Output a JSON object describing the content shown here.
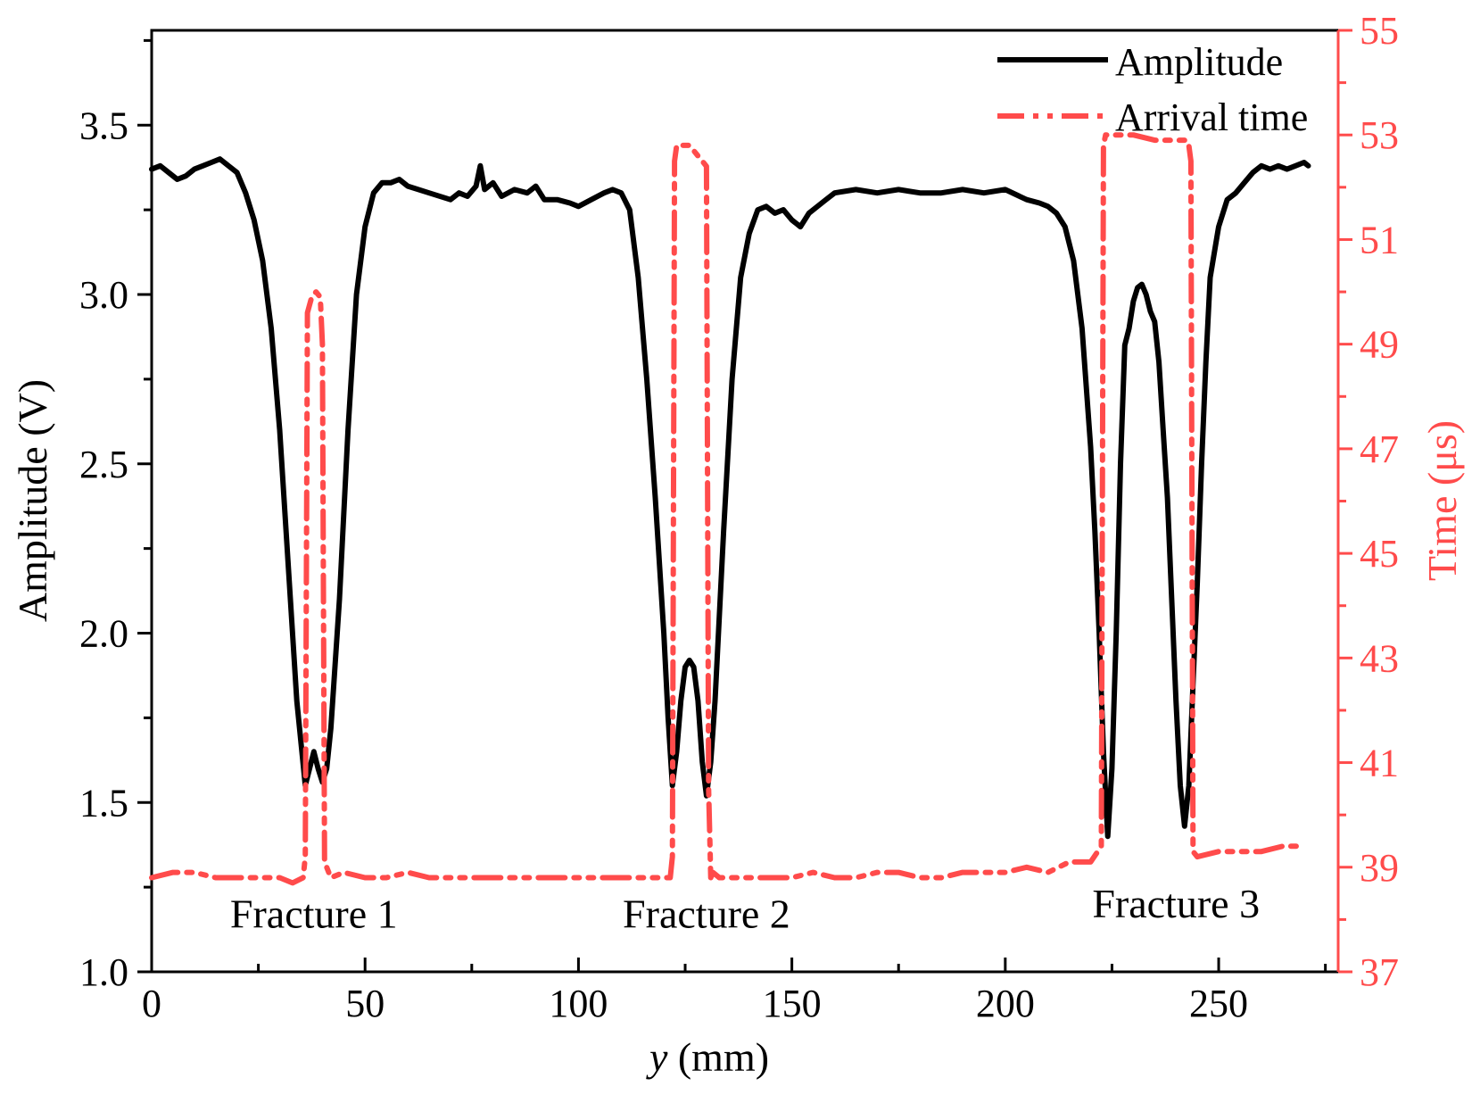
{
  "chart_data": {
    "type": "line",
    "xlabel_var": "y",
    "xlabel_unit": "(mm)",
    "ylabel": "Amplitude (V)",
    "y2label": "Time (μs)",
    "xlim": [
      0,
      278
    ],
    "ylim": [
      1.0,
      3.78
    ],
    "y2lim": [
      37,
      55
    ],
    "xticks": [
      0,
      50,
      100,
      150,
      200,
      250
    ],
    "yticks": [
      1.0,
      1.5,
      2.0,
      2.5,
      3.0,
      3.5
    ],
    "yticks_labels": [
      "1.0",
      "1.5",
      "2.0",
      "2.5",
      "3.0",
      "3.5"
    ],
    "y2ticks": [
      37,
      39,
      41,
      43,
      45,
      47,
      49,
      51,
      53,
      55
    ],
    "colors": {
      "amplitude": "#000000",
      "arrival": "#ff4b4b",
      "axis": "#000000",
      "right_axis": "#ff4b4b"
    },
    "legend": {
      "position": "top-right",
      "entries": [
        "Amplitude",
        "Arrival time"
      ]
    },
    "annotations": [
      {
        "text": "Fracture 1",
        "x": 38,
        "y": 1.17
      },
      {
        "text": "Fracture 2",
        "x": 130,
        "y": 1.17
      },
      {
        "text": "Fracture 3",
        "x": 240,
        "y": 1.2
      }
    ],
    "series": [
      {
        "name": "Amplitude",
        "axis": "left",
        "x": [
          0,
          2,
          4,
          6,
          8,
          10,
          12,
          14,
          16,
          18,
          20,
          22,
          24,
          26,
          28,
          30,
          32,
          34,
          36,
          37,
          38,
          39,
          40,
          41,
          42,
          44,
          46,
          48,
          50,
          52,
          54,
          56,
          58,
          60,
          65,
          70,
          72,
          74,
          76,
          77,
          78,
          80,
          82,
          85,
          88,
          90,
          92,
          95,
          98,
          100,
          103,
          106,
          108,
          110,
          112,
          114,
          116,
          118,
          120,
          121,
          122,
          123,
          124,
          125,
          126,
          127,
          128,
          129,
          130,
          131,
          132,
          134,
          136,
          138,
          140,
          142,
          144,
          146,
          148,
          150,
          152,
          154,
          156,
          158,
          160,
          165,
          170,
          175,
          180,
          185,
          190,
          195,
          200,
          205,
          208,
          210,
          212,
          214,
          216,
          218,
          220,
          221,
          222,
          223,
          224,
          225,
          226,
          227,
          228,
          229,
          230,
          231,
          232,
          233,
          234,
          235,
          236,
          237,
          238,
          239,
          240,
          241,
          242,
          243,
          244,
          245,
          246,
          247,
          248,
          250,
          252,
          254,
          256,
          258,
          260,
          262,
          264,
          266,
          268,
          270,
          271
        ],
        "values": [
          3.37,
          3.38,
          3.36,
          3.34,
          3.35,
          3.37,
          3.38,
          3.39,
          3.4,
          3.38,
          3.36,
          3.3,
          3.22,
          3.1,
          2.9,
          2.6,
          2.2,
          1.8,
          1.55,
          1.6,
          1.65,
          1.6,
          1.56,
          1.6,
          1.72,
          2.1,
          2.6,
          3.0,
          3.2,
          3.3,
          3.33,
          3.33,
          3.34,
          3.32,
          3.3,
          3.28,
          3.3,
          3.29,
          3.32,
          3.38,
          3.31,
          3.33,
          3.29,
          3.31,
          3.3,
          3.32,
          3.28,
          3.28,
          3.27,
          3.26,
          3.28,
          3.3,
          3.31,
          3.3,
          3.25,
          3.05,
          2.75,
          2.4,
          2.0,
          1.75,
          1.55,
          1.65,
          1.8,
          1.9,
          1.92,
          1.9,
          1.8,
          1.62,
          1.52,
          1.62,
          1.8,
          2.3,
          2.75,
          3.05,
          3.18,
          3.25,
          3.26,
          3.24,
          3.25,
          3.22,
          3.2,
          3.24,
          3.26,
          3.28,
          3.3,
          3.31,
          3.3,
          3.31,
          3.3,
          3.3,
          3.31,
          3.3,
          3.31,
          3.28,
          3.27,
          3.26,
          3.24,
          3.2,
          3.1,
          2.9,
          2.55,
          2.3,
          2.0,
          1.65,
          1.4,
          1.6,
          2.0,
          2.5,
          2.85,
          2.9,
          2.98,
          3.02,
          3.03,
          3.0,
          2.95,
          2.92,
          2.8,
          2.6,
          2.4,
          2.1,
          1.8,
          1.55,
          1.43,
          1.55,
          1.85,
          2.15,
          2.5,
          2.8,
          3.05,
          3.2,
          3.28,
          3.3,
          3.33,
          3.36,
          3.38,
          3.37,
          3.38,
          3.37,
          3.38,
          3.39,
          3.38
        ]
      },
      {
        "name": "Arrival time",
        "axis": "right",
        "x": [
          0,
          5,
          10,
          15,
          20,
          25,
          30,
          33,
          35.5,
          36,
          36.5,
          37.5,
          38.5,
          39.5,
          40,
          40.5,
          42,
          45,
          50,
          55,
          60,
          65,
          70,
          75,
          80,
          85,
          90,
          95,
          100,
          105,
          110,
          115,
          118,
          121.5,
          122,
          122.5,
          123,
          124,
          126,
          128,
          129,
          130,
          130.5,
          131,
          131.5,
          133,
          135,
          140,
          145,
          150,
          155,
          160,
          165,
          170,
          175,
          180,
          185,
          190,
          195,
          200,
          205,
          210,
          215,
          220,
          222.5,
          223,
          223.5,
          224,
          226,
          230,
          235,
          240,
          242.5,
          243,
          243.5,
          244,
          245,
          250,
          255,
          260,
          265,
          270
        ],
        "values": [
          38.8,
          38.9,
          38.9,
          38.8,
          38.8,
          38.8,
          38.8,
          38.7,
          38.8,
          39.2,
          49.6,
          49.9,
          50.0,
          49.9,
          49.0,
          39.1,
          38.8,
          38.9,
          38.8,
          38.8,
          38.9,
          38.8,
          38.8,
          38.8,
          38.8,
          38.8,
          38.8,
          38.8,
          38.8,
          38.8,
          38.8,
          38.8,
          38.8,
          38.8,
          39.2,
          52.5,
          52.8,
          52.8,
          52.8,
          52.6,
          52.5,
          52.4,
          40.5,
          38.8,
          38.9,
          38.8,
          38.8,
          38.8,
          38.8,
          38.8,
          38.9,
          38.8,
          38.8,
          38.9,
          38.9,
          38.8,
          38.8,
          38.9,
          38.9,
          38.9,
          39.0,
          38.9,
          39.1,
          39.1,
          39.4,
          52.8,
          53.0,
          53.0,
          53.0,
          53.0,
          52.9,
          52.9,
          52.9,
          52.8,
          52.5,
          39.3,
          39.2,
          39.3,
          39.3,
          39.3,
          39.4,
          39.4
        ]
      }
    ]
  }
}
